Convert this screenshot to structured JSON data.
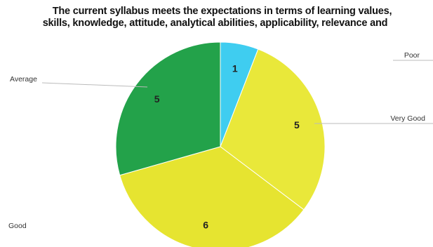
{
  "chart_data": {
    "type": "pie",
    "title_lines": [
      "The current syllabus meets the expectations in terms of learning values,",
      "skills, knowledge, attitude, analytical abilities, applicability, relevance and"
    ],
    "slices": [
      {
        "label": "Poor",
        "value": 1,
        "color": "#3fcdf0"
      },
      {
        "label": "Very Good",
        "value": 5,
        "color": "#e9e83a"
      },
      {
        "label": "Good",
        "value": 6,
        "color": "#e6e430"
      },
      {
        "label": "Average",
        "value": 5,
        "color": "#23a24a"
      }
    ],
    "data_labels_visible": [
      "1",
      "5",
      "6",
      "5"
    ],
    "start_angle_deg": 0,
    "direction": "clockwise"
  }
}
